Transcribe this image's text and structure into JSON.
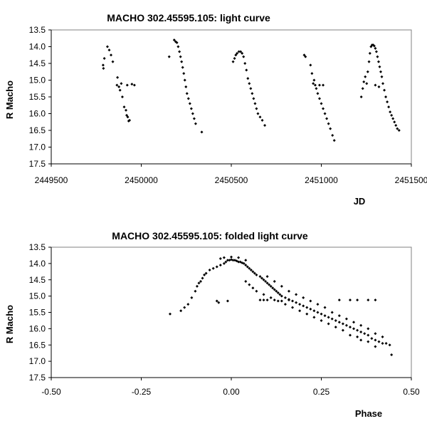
{
  "chart_data": [
    {
      "type": "scatter",
      "title": "MACHO 302.45595.105: light curve",
      "xlabel": "JD",
      "ylabel": "R Macho",
      "xlim": [
        2449500,
        2451500
      ],
      "ylim": [
        13.5,
        17.5
      ],
      "y_inverted": true,
      "xticks": [
        2449500,
        2450000,
        2450500,
        2451000,
        2451500
      ],
      "xtick_labels": [
        "2449500",
        "2450000",
        "2450500",
        "2451000",
        "2451500"
      ],
      "yticks": [
        13.5,
        14.0,
        14.5,
        15.0,
        15.5,
        16.0,
        16.5,
        17.0,
        17.5
      ],
      "ytick_labels": [
        "13.5",
        "14.0",
        "14.5",
        "15.0",
        "15.5",
        "16.0",
        "16.5",
        "17.0",
        "17.5"
      ],
      "grid": false,
      "points": [
        [
          2449788,
          14.55
        ],
        [
          2449790,
          14.65
        ],
        [
          2449795,
          14.35
        ],
        [
          2449812,
          14.0
        ],
        [
          2449822,
          14.1
        ],
        [
          2449832,
          14.25
        ],
        [
          2449842,
          14.45
        ],
        [
          2449865,
          15.15
        ],
        [
          2449868,
          14.92
        ],
        [
          2449876,
          15.2
        ],
        [
          2449882,
          15.3
        ],
        [
          2449889,
          15.1
        ],
        [
          2449895,
          15.5
        ],
        [
          2449905,
          15.8
        ],
        [
          2449915,
          15.9
        ],
        [
          2449919,
          16.05
        ],
        [
          2449925,
          16.1
        ],
        [
          2449930,
          16.22
        ],
        [
          2449935,
          16.2
        ],
        [
          2449922,
          15.15
        ],
        [
          2449948,
          15.12
        ],
        [
          2449962,
          15.15
        ],
        [
          2450155,
          14.3
        ],
        [
          2450183,
          13.8
        ],
        [
          2450191,
          13.85
        ],
        [
          2450198,
          13.88
        ],
        [
          2450205,
          14.0
        ],
        [
          2450212,
          14.15
        ],
        [
          2450218,
          14.3
        ],
        [
          2450224,
          14.45
        ],
        [
          2450230,
          14.62
        ],
        [
          2450236,
          14.8
        ],
        [
          2450242,
          15.0
        ],
        [
          2450248,
          15.2
        ],
        [
          2450254,
          15.4
        ],
        [
          2450262,
          15.55
        ],
        [
          2450270,
          15.7
        ],
        [
          2450278,
          15.85
        ],
        [
          2450286,
          16.0
        ],
        [
          2450294,
          16.15
        ],
        [
          2450302,
          16.3
        ],
        [
          2450336,
          16.55
        ],
        [
          2450510,
          14.45
        ],
        [
          2450518,
          14.35
        ],
        [
          2450525,
          14.25
        ],
        [
          2450532,
          14.2
        ],
        [
          2450542,
          14.15
        ],
        [
          2450552,
          14.15
        ],
        [
          2450560,
          14.2
        ],
        [
          2450568,
          14.3
        ],
        [
          2450576,
          14.5
        ],
        [
          2450584,
          14.7
        ],
        [
          2450592,
          14.95
        ],
        [
          2450600,
          15.1
        ],
        [
          2450608,
          15.25
        ],
        [
          2450616,
          15.4
        ],
        [
          2450624,
          15.55
        ],
        [
          2450632,
          15.7
        ],
        [
          2450640,
          15.85
        ],
        [
          2450648,
          16.0
        ],
        [
          2450660,
          16.1
        ],
        [
          2450672,
          16.2
        ],
        [
          2450686,
          16.35
        ],
        [
          2450905,
          14.25
        ],
        [
          2450912,
          14.3
        ],
        [
          2450940,
          14.55
        ],
        [
          2450948,
          14.8
        ],
        [
          2450955,
          15.1
        ],
        [
          2450960,
          15.0
        ],
        [
          2450966,
          15.15
        ],
        [
          2450972,
          15.25
        ],
        [
          2450980,
          15.4
        ],
        [
          2450990,
          15.55
        ],
        [
          2451000,
          15.7
        ],
        [
          2451010,
          15.85
        ],
        [
          2451020,
          16.0
        ],
        [
          2451030,
          16.15
        ],
        [
          2451040,
          16.3
        ],
        [
          2451050,
          16.45
        ],
        [
          2451062,
          16.65
        ],
        [
          2451072,
          16.8
        ],
        [
          2450990,
          15.15
        ],
        [
          2451010,
          15.15
        ],
        [
          2451222,
          15.5
        ],
        [
          2451230,
          15.25
        ],
        [
          2451236,
          15.05
        ],
        [
          2451244,
          14.9
        ],
        [
          2451252,
          15.1
        ],
        [
          2451258,
          14.75
        ],
        [
          2451265,
          14.45
        ],
        [
          2451270,
          14.2
        ],
        [
          2451276,
          14.0
        ],
        [
          2451282,
          13.95
        ],
        [
          2451288,
          13.95
        ],
        [
          2451294,
          13.98
        ],
        [
          2451300,
          14.05
        ],
        [
          2451306,
          14.15
        ],
        [
          2451312,
          14.3
        ],
        [
          2451318,
          14.45
        ],
        [
          2451324,
          14.6
        ],
        [
          2451330,
          14.75
        ],
        [
          2451336,
          14.9
        ],
        [
          2451342,
          15.1
        ],
        [
          2451350,
          15.3
        ],
        [
          2451358,
          15.5
        ],
        [
          2451366,
          15.65
        ],
        [
          2451374,
          15.8
        ],
        [
          2451382,
          15.95
        ],
        [
          2451390,
          16.05
        ],
        [
          2451398,
          16.15
        ],
        [
          2451406,
          16.25
        ],
        [
          2451414,
          16.35
        ],
        [
          2451422,
          16.45
        ],
        [
          2451432,
          16.5
        ],
        [
          2451300,
          15.15
        ],
        [
          2451320,
          15.2
        ]
      ]
    },
    {
      "type": "scatter",
      "title": "MACHO 302.45595.105: folded light curve",
      "xlabel": "Phase",
      "ylabel": "R Macho",
      "xlim": [
        -0.5,
        0.5
      ],
      "ylim": [
        13.5,
        17.5
      ],
      "y_inverted": true,
      "xticks": [
        -0.5,
        -0.25,
        0.0,
        0.25,
        0.5
      ],
      "xtick_labels": [
        "-0.50",
        "-0.25",
        "0.00",
        "0.25",
        "0.50"
      ],
      "yticks": [
        13.5,
        14.0,
        14.5,
        15.0,
        15.5,
        16.0,
        16.5,
        17.0,
        17.5
      ],
      "ytick_labels": [
        "13.5",
        "14.0",
        "14.5",
        "15.0",
        "15.5",
        "16.0",
        "16.5",
        "17.0",
        "17.5"
      ],
      "grid": false,
      "points": [
        [
          -0.17,
          15.55
        ],
        [
          -0.14,
          15.45
        ],
        [
          -0.13,
          15.35
        ],
        [
          -0.12,
          15.25
        ],
        [
          -0.11,
          15.05
        ],
        [
          -0.1,
          14.85
        ],
        [
          -0.095,
          14.7
        ],
        [
          -0.09,
          14.6
        ],
        [
          -0.085,
          14.55
        ],
        [
          -0.08,
          14.45
        ],
        [
          -0.075,
          14.35
        ],
        [
          -0.07,
          14.3
        ],
        [
          -0.06,
          14.2
        ],
        [
          -0.05,
          14.15
        ],
        [
          -0.04,
          14.1
        ],
        [
          -0.03,
          14.05
        ],
        [
          -0.02,
          14.0
        ],
        [
          -0.015,
          13.95
        ],
        [
          -0.01,
          13.9
        ],
        [
          -0.005,
          13.9
        ],
        [
          0.0,
          13.88
        ],
        [
          0.005,
          13.9
        ],
        [
          0.01,
          13.9
        ],
        [
          0.015,
          13.92
        ],
        [
          0.02,
          13.95
        ],
        [
          0.025,
          13.95
        ],
        [
          0.03,
          13.98
        ],
        [
          0.035,
          14.0
        ],
        [
          0.04,
          14.05
        ],
        [
          0.045,
          14.1
        ],
        [
          0.05,
          14.15
        ],
        [
          0.055,
          14.2
        ],
        [
          0.06,
          14.25
        ],
        [
          0.065,
          14.3
        ],
        [
          0.07,
          14.35
        ],
        [
          -0.02,
          13.82
        ],
        [
          -0.03,
          13.85
        ],
        [
          0.0,
          13.8
        ],
        [
          0.02,
          13.82
        ],
        [
          0.04,
          13.9
        ],
        [
          -0.04,
          15.15
        ],
        [
          -0.01,
          15.15
        ],
        [
          -0.035,
          15.2
        ],
        [
          0.08,
          14.4
        ],
        [
          0.085,
          14.45
        ],
        [
          0.09,
          14.5
        ],
        [
          0.095,
          14.55
        ],
        [
          0.1,
          14.6
        ],
        [
          0.105,
          14.65
        ],
        [
          0.11,
          14.7
        ],
        [
          0.115,
          14.75
        ],
        [
          0.12,
          14.8
        ],
        [
          0.125,
          14.85
        ],
        [
          0.13,
          14.9
        ],
        [
          0.135,
          14.95
        ],
        [
          0.14,
          15.0
        ],
        [
          0.15,
          15.05
        ],
        [
          0.16,
          15.1
        ],
        [
          0.17,
          15.15
        ],
        [
          0.18,
          15.2
        ],
        [
          0.19,
          15.25
        ],
        [
          0.2,
          15.3
        ],
        [
          0.21,
          15.35
        ],
        [
          0.22,
          15.4
        ],
        [
          0.23,
          15.45
        ],
        [
          0.24,
          15.5
        ],
        [
          0.25,
          15.55
        ],
        [
          0.26,
          15.6
        ],
        [
          0.27,
          15.65
        ],
        [
          0.28,
          15.7
        ],
        [
          0.29,
          15.75
        ],
        [
          0.3,
          15.8
        ],
        [
          0.31,
          15.85
        ],
        [
          0.32,
          15.9
        ],
        [
          0.33,
          15.95
        ],
        [
          0.34,
          16.0
        ],
        [
          0.35,
          16.05
        ],
        [
          0.36,
          16.1
        ],
        [
          0.37,
          16.15
        ],
        [
          0.38,
          16.2
        ],
        [
          0.39,
          16.3
        ],
        [
          0.4,
          16.35
        ],
        [
          0.41,
          16.4
        ],
        [
          0.42,
          16.45
        ],
        [
          0.43,
          16.45
        ],
        [
          0.44,
          16.5
        ],
        [
          0.445,
          16.8
        ],
        [
          0.4,
          16.55
        ],
        [
          0.38,
          16.4
        ],
        [
          0.36,
          16.35
        ],
        [
          0.35,
          16.25
        ],
        [
          0.33,
          16.2
        ],
        [
          0.31,
          16.05
        ],
        [
          0.29,
          15.95
        ],
        [
          0.27,
          15.85
        ],
        [
          0.25,
          15.75
        ],
        [
          0.23,
          15.65
        ],
        [
          0.21,
          15.55
        ],
        [
          0.19,
          15.45
        ],
        [
          0.17,
          15.35
        ],
        [
          0.15,
          15.25
        ],
        [
          0.13,
          15.15
        ],
        [
          0.11,
          15.05
        ],
        [
          0.09,
          14.95
        ],
        [
          0.07,
          14.85
        ],
        [
          0.06,
          14.75
        ],
        [
          0.05,
          14.65
        ],
        [
          0.04,
          14.55
        ],
        [
          0.1,
          14.4
        ],
        [
          0.12,
          14.55
        ],
        [
          0.14,
          14.7
        ],
        [
          0.16,
          14.85
        ],
        [
          0.18,
          14.95
        ],
        [
          0.2,
          15.05
        ],
        [
          0.22,
          15.15
        ],
        [
          0.24,
          15.25
        ],
        [
          0.26,
          15.35
        ],
        [
          0.28,
          15.5
        ],
        [
          0.3,
          15.6
        ],
        [
          0.32,
          15.7
        ],
        [
          0.34,
          15.8
        ],
        [
          0.36,
          15.9
        ],
        [
          0.38,
          16.0
        ],
        [
          0.4,
          16.15
        ],
        [
          0.42,
          16.25
        ],
        [
          0.08,
          15.12
        ],
        [
          0.09,
          15.12
        ],
        [
          0.1,
          15.12
        ],
        [
          0.12,
          15.12
        ],
        [
          0.14,
          15.15
        ],
        [
          0.16,
          15.12
        ],
        [
          0.3,
          15.12
        ],
        [
          0.33,
          15.12
        ],
        [
          0.35,
          15.12
        ],
        [
          0.38,
          15.12
        ],
        [
          0.4,
          15.12
        ]
      ]
    }
  ]
}
